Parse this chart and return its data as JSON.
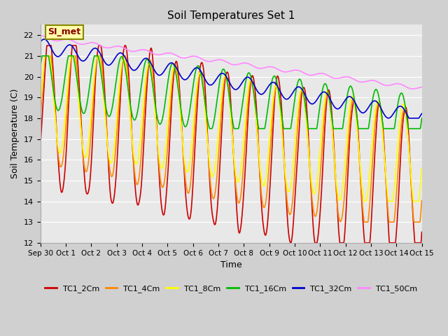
{
  "title": "Soil Temperatures Set 1",
  "xlabel": "Time",
  "ylabel": "Soil Temperature (C)",
  "ylim": [
    12.0,
    22.5
  ],
  "yticks": [
    12.0,
    13.0,
    14.0,
    15.0,
    16.0,
    17.0,
    18.0,
    19.0,
    20.0,
    21.0,
    22.0
  ],
  "bg_color": "#d0d0d0",
  "plot_bg": "#e8e8e8",
  "legend_labels": [
    "TC1_2Cm",
    "TC1_4Cm",
    "TC1_8Cm",
    "TC1_16Cm",
    "TC1_32Cm",
    "TC1_50Cm"
  ],
  "legend_colors": [
    "#cc0000",
    "#ff8800",
    "#ffff00",
    "#00bb00",
    "#0000cc",
    "#ff88ff"
  ],
  "annotation_text": "SI_met",
  "annotation_bg": "#ffffaa",
  "annotation_border": "#888800",
  "xtick_labels": [
    "Sep 30",
    "Oct 1",
    "Oct 2",
    "Oct 3",
    "Oct 4",
    "Oct 5",
    "Oct 6",
    "Oct 7",
    "Oct 8",
    "Oct 9",
    "Oct 10",
    "Oct 11",
    "Oct 12",
    "Oct 13",
    "Oct 14",
    "Oct 15"
  ],
  "n_points": 1440,
  "figsize": [
    6.4,
    4.8
  ],
  "dpi": 100
}
